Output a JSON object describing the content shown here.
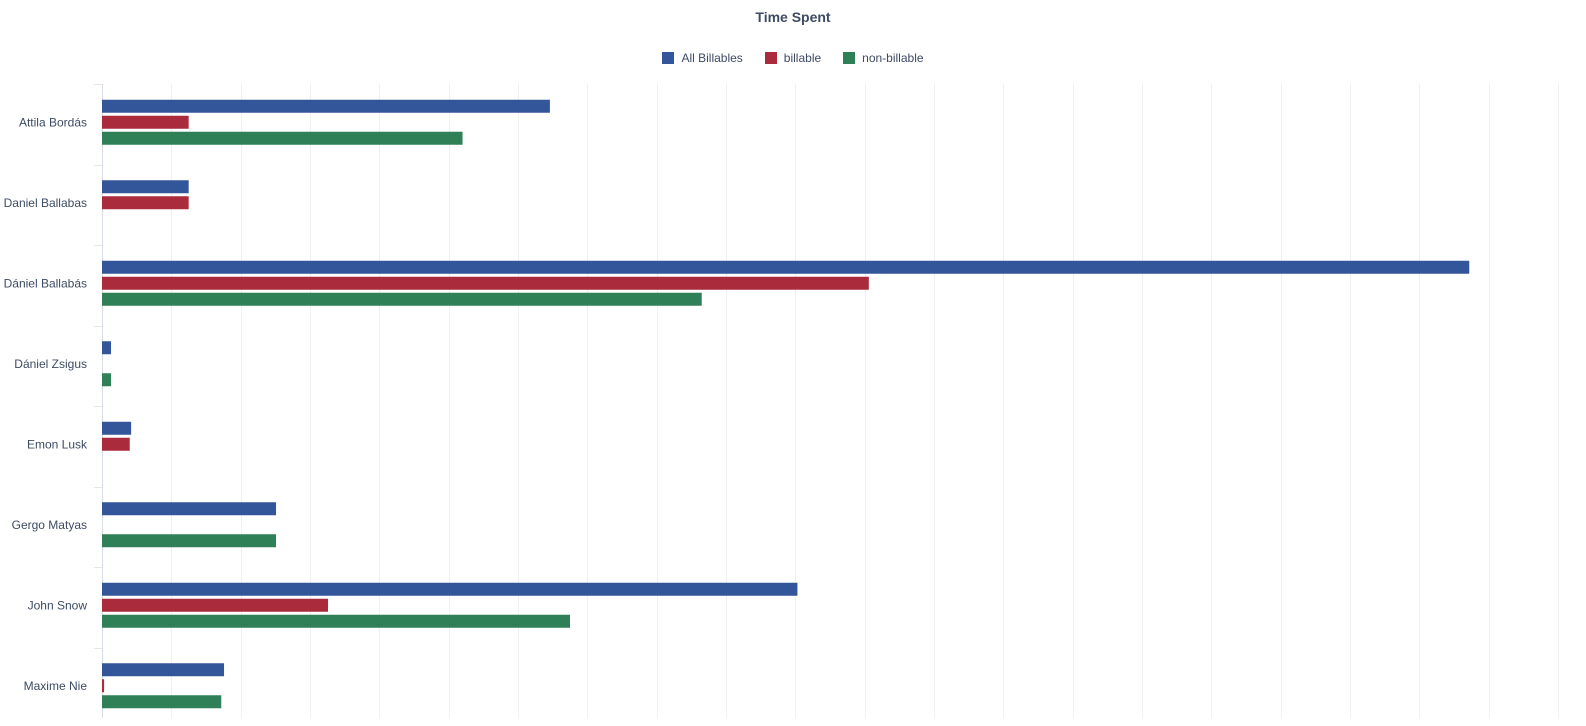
{
  "chart_data": {
    "type": "bar",
    "orientation": "horizontal",
    "title": "Time Spent",
    "categories": [
      "Attila Bordás",
      "Daniel Ballabas",
      "Dániel Ballabás",
      "Dániel Zsigus",
      "Emon Lusk",
      "Gergo Matyas",
      "John Snow",
      "Maxime Nie"
    ],
    "series": [
      {
        "name": "All Billables",
        "color": "#33569a",
        "values": [
          64.6,
          12.5,
          197.2,
          1.3,
          4.2,
          25.1,
          100.3,
          17.6
        ]
      },
      {
        "name": "billable",
        "color": "#aa2b3b",
        "values": [
          12.5,
          12.5,
          110.6,
          0,
          4.0,
          0,
          32.6,
          0.3
        ]
      },
      {
        "name": "non-billable",
        "color": "#2f7f57",
        "values": [
          52.0,
          0,
          86.5,
          1.3,
          0,
          25.1,
          67.5,
          17.2
        ]
      }
    ],
    "xlim": [
      0,
      210
    ],
    "x_gridline_step": 10,
    "grid": true,
    "legend_position": "top-center",
    "tick_labels_x": false
  }
}
